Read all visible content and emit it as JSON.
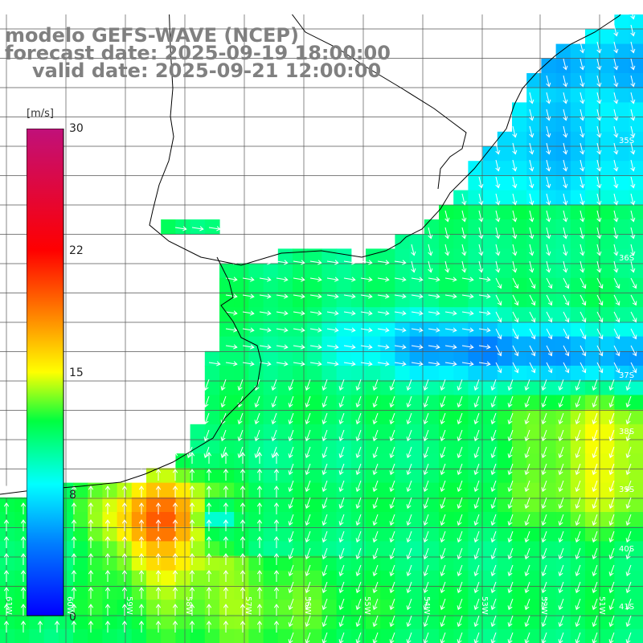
{
  "title": {
    "line1": "modelo GEFS-WAVE (NCEP)",
    "line2": "forecast date: 2025-09-19 18:00:00",
    "line3": "valid date: 2025-09-21 12:00:00"
  },
  "colorbar": {
    "unit": "[m/s]",
    "ticks": [
      {
        "value": 30,
        "label": "30"
      },
      {
        "value": 22,
        "label": "22"
      },
      {
        "value": 15,
        "label": "15"
      },
      {
        "value": 8,
        "label": "8"
      },
      {
        "value": 0,
        "label": "0"
      }
    ],
    "min": 0,
    "max": 30
  },
  "lat_labels": [
    "35S",
    "36S",
    "37S",
    "38S",
    "39S",
    "40S",
    "41S"
  ],
  "lon_labels": [
    "61W",
    "60W",
    "59W",
    "58W",
    "57W",
    "56W",
    "55W",
    "54W",
    "53W",
    "52W",
    "51W"
  ],
  "colors": {
    "land": "#ffffff",
    "grid": "#555555",
    "coast": "#000000",
    "title": "#808080"
  }
}
